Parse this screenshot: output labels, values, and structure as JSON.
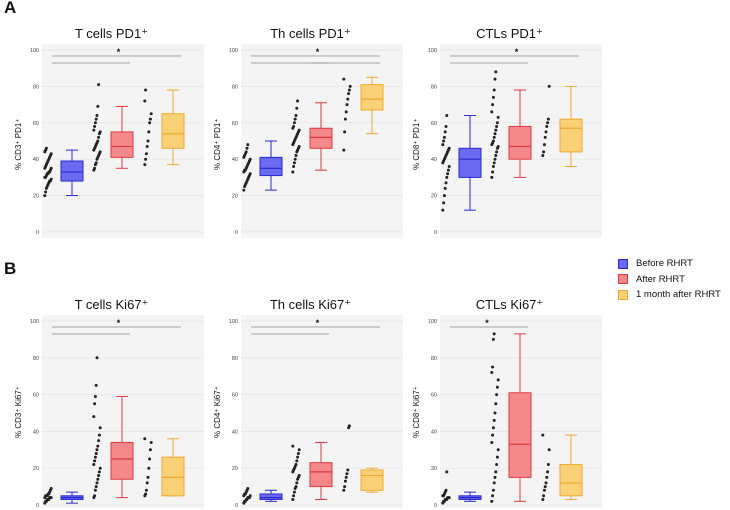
{
  "panels": {
    "a": "A",
    "b": "B"
  },
  "legend": [
    {
      "label": "Before RHRT",
      "color": "#6a6af2",
      "stroke": "#2a2ad0"
    },
    {
      "label": "After RHRT",
      "color": "#f5888a",
      "stroke": "#de3a40"
    },
    {
      "label": "1 month after RHRT",
      "color": "#fbd178",
      "stroke": "#f0a830"
    }
  ],
  "chart_data": [
    {
      "type": "box",
      "title": "T cells PD1⁺",
      "ylabel": "% CD3⁺ PD1⁺",
      "ylim": [
        0,
        100
      ],
      "yticks": [
        "0",
        "20",
        "40",
        "60",
        "80",
        "100"
      ],
      "significance": "*",
      "groups": [
        {
          "name": "Before RHRT",
          "min": 20,
          "q1": 28,
          "median": 33,
          "q3": 39,
          "max": 45,
          "points": [
            20,
            22,
            24,
            25,
            26,
            27,
            28,
            28,
            29,
            30,
            30,
            31,
            32,
            32,
            33,
            33,
            34,
            35,
            35,
            36,
            37,
            38,
            39,
            40,
            41,
            42,
            43,
            44,
            45,
            46
          ]
        },
        {
          "name": "After RHRT",
          "min": 35,
          "q1": 41,
          "median": 47,
          "q3": 55,
          "max": 69,
          "points": [
            34,
            35,
            37,
            38,
            40,
            41,
            42,
            43,
            44,
            45,
            46,
            47,
            48,
            49,
            50,
            52,
            54,
            55,
            56,
            58,
            60,
            62,
            64,
            69,
            81
          ]
        },
        {
          "name": "1 month after RHRT",
          "min": 37,
          "q1": 46,
          "median": 54,
          "q3": 65,
          "max": 78,
          "points": [
            37,
            40,
            43,
            47,
            50,
            55,
            60,
            62,
            65,
            72,
            78
          ]
        }
      ]
    },
    {
      "type": "box",
      "title": "Th cells PD1⁺",
      "ylabel": "% CD4⁺ PD1⁺",
      "ylim": [
        0,
        100
      ],
      "yticks": [
        "0",
        "20",
        "40",
        "60",
        "80",
        "100"
      ],
      "significance": "*",
      "groups": [
        {
          "name": "Before RHRT",
          "min": 23,
          "q1": 31,
          "median": 35,
          "q3": 41,
          "max": 50,
          "points": [
            23,
            25,
            26,
            27,
            28,
            29,
            30,
            31,
            32,
            33,
            34,
            34,
            35,
            36,
            37,
            38,
            39,
            40,
            41,
            42,
            43,
            44,
            46,
            48
          ]
        },
        {
          "name": "After RHRT",
          "min": 34,
          "q1": 46,
          "median": 52,
          "q3": 57,
          "max": 71,
          "points": [
            33,
            36,
            38,
            40,
            42,
            44,
            45,
            46,
            47,
            48,
            49,
            50,
            51,
            52,
            53,
            54,
            55,
            56,
            57,
            58,
            60,
            62,
            64,
            68,
            72
          ]
        },
        {
          "name": "1 month after RHRT",
          "min": 54,
          "q1": 67,
          "median": 73,
          "q3": 81,
          "max": 85,
          "points": [
            45,
            55,
            62,
            66,
            70,
            73,
            76,
            78,
            80,
            84
          ]
        }
      ]
    },
    {
      "type": "box",
      "title": "CTLs PD1⁺",
      "ylabel": "% CD8⁺ PD1⁺",
      "ylim": [
        0,
        100
      ],
      "yticks": [
        "0",
        "20",
        "40",
        "60",
        "80",
        "100"
      ],
      "significance": "*",
      "groups": [
        {
          "name": "Before RHRT",
          "min": 12,
          "q1": 30,
          "median": 40,
          "q3": 46,
          "max": 64,
          "points": [
            12,
            16,
            20,
            24,
            27,
            30,
            32,
            34,
            36,
            38,
            39,
            40,
            41,
            42,
            43,
            44,
            45,
            46,
            48,
            50,
            52,
            55,
            58,
            64
          ]
        },
        {
          "name": "After RHRT",
          "min": 30,
          "q1": 40,
          "median": 47,
          "q3": 58,
          "max": 78,
          "points": [
            30,
            33,
            36,
            38,
            40,
            42,
            44,
            46,
            47,
            48,
            49,
            50,
            52,
            54,
            56,
            58,
            60,
            63,
            66,
            70,
            74,
            78,
            84,
            88
          ]
        },
        {
          "name": "1 month after RHRT",
          "min": 36,
          "q1": 44,
          "median": 57,
          "q3": 62,
          "max": 80,
          "points": [
            42,
            44,
            48,
            52,
            55,
            58,
            60,
            62,
            80
          ]
        }
      ]
    },
    {
      "type": "box",
      "title": "T cells Ki67⁺",
      "ylabel": "% CD3⁺ Ki67⁺",
      "ylim": [
        0,
        100
      ],
      "yticks": [
        "0",
        "20",
        "40",
        "60",
        "80",
        "100"
      ],
      "significance": "*",
      "groups": [
        {
          "name": "Before RHRT",
          "min": 1,
          "q1": 3,
          "median": 4,
          "q3": 5,
          "max": 7,
          "points": [
            1,
            2,
            2,
            3,
            3,
            3,
            4,
            4,
            4,
            4,
            5,
            5,
            5,
            6,
            6,
            7,
            8,
            9
          ]
        },
        {
          "name": "After RHRT",
          "min": 4,
          "q1": 14,
          "median": 25,
          "q3": 34,
          "max": 59,
          "points": [
            4,
            5,
            8,
            10,
            12,
            14,
            16,
            18,
            20,
            22,
            24,
            26,
            28,
            30,
            32,
            35,
            38,
            42,
            48,
            55,
            59,
            65,
            80
          ]
        },
        {
          "name": "1 month after RHRT",
          "min": 5,
          "q1": 5,
          "median": 15,
          "q3": 26,
          "max": 36,
          "points": [
            5,
            6,
            8,
            12,
            15,
            20,
            25,
            30,
            34,
            36
          ]
        }
      ]
    },
    {
      "type": "box",
      "title": "Th cells Ki67⁺",
      "ylabel": "% CD4⁺ Ki67⁺",
      "ylim": [
        0,
        100
      ],
      "yticks": [
        "0",
        "20",
        "40",
        "60",
        "80",
        "100"
      ],
      "significance": "*",
      "groups": [
        {
          "name": "Before RHRT",
          "min": 2,
          "q1": 3,
          "median": 4,
          "q3": 6,
          "max": 8,
          "points": [
            1,
            2,
            2,
            3,
            3,
            4,
            4,
            4,
            5,
            5,
            6,
            6,
            7,
            8,
            9
          ]
        },
        {
          "name": "After RHRT",
          "min": 3,
          "q1": 10,
          "median": 18,
          "q3": 23,
          "max": 34,
          "points": [
            3,
            5,
            7,
            9,
            10,
            12,
            14,
            15,
            16,
            18,
            19,
            20,
            21,
            22,
            24,
            26,
            28,
            30,
            32
          ]
        },
        {
          "name": "1 month after RHRT",
          "min": 7,
          "q1": 8,
          "median": 16,
          "q3": 19,
          "max": 20,
          "points": [
            8,
            10,
            13,
            15,
            17,
            19,
            42,
            43
          ]
        }
      ]
    },
    {
      "type": "box",
      "title": "CTLs Ki67⁺",
      "ylabel": "% CD8⁺ Ki67⁺",
      "ylim": [
        0,
        100
      ],
      "yticks": [
        "0",
        "20",
        "40",
        "60",
        "80",
        "100"
      ],
      "significance": "*",
      "groups": [
        {
          "name": "Before RHRT",
          "min": 2,
          "q1": 3,
          "median": 4,
          "q3": 5,
          "max": 7,
          "points": [
            1,
            2,
            2,
            3,
            3,
            3,
            4,
            4,
            4,
            5,
            5,
            6,
            7,
            8,
            18
          ]
        },
        {
          "name": "After RHRT",
          "min": 2,
          "q1": 15,
          "median": 33,
          "q3": 61,
          "max": 93,
          "points": [
            2,
            5,
            8,
            12,
            15,
            18,
            22,
            26,
            30,
            34,
            38,
            42,
            46,
            50,
            55,
            60,
            64,
            68,
            72,
            75,
            90,
            93
          ]
        },
        {
          "name": "1 month after RHRT",
          "min": 3,
          "q1": 5,
          "median": 12,
          "q3": 22,
          "max": 38,
          "points": [
            3,
            5,
            8,
            10,
            12,
            15,
            18,
            22,
            30,
            38
          ]
        }
      ]
    }
  ]
}
